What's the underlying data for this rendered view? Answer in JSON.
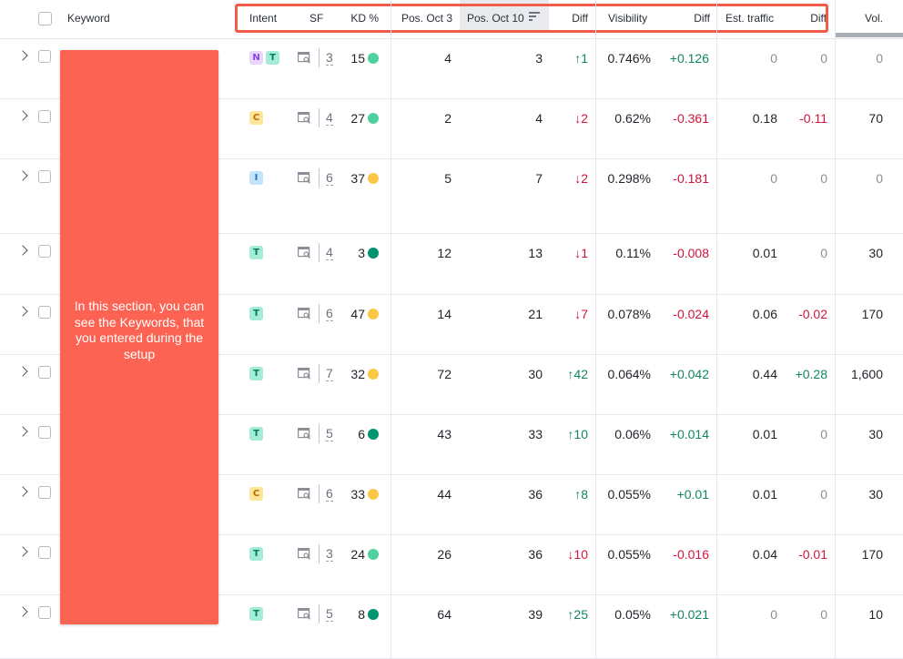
{
  "header": {
    "keyword": "Keyword",
    "intent": "Intent",
    "sf": "SF",
    "kd": "KD %",
    "pos_oct3": "Pos. Oct 3",
    "pos_oct10": "Pos. Oct 10",
    "diff1": "Diff",
    "visibility": "Visibility",
    "diff2": "Diff",
    "est_traffic": "Est. traffic",
    "diff3": "Diff",
    "vol": "Vol."
  },
  "sort": {
    "column": "Pos. Oct 10",
    "icon": "sort-icon"
  },
  "callout": {
    "text": "In this section, you can see the Keywords, that you entered during the setup",
    "color": "#fd6352"
  },
  "highlight_color": "#f25c47",
  "colors": {
    "up": "#11875f",
    "down": "#d2143a",
    "kd_green": "#4fd19f",
    "kd_yellow": "#fcc747",
    "kd_darkgreen": "#00936f"
  },
  "rows": [
    {
      "intent": [
        "N",
        "T"
      ],
      "sf": "3",
      "kd": "15",
      "kd_color": "#4fd19f",
      "pos1": "4",
      "pos2": "3",
      "diff1": "↑1",
      "diff1_dir": "up",
      "vis": "0.746%",
      "diff2": "+0.126",
      "diff2_dir": "up",
      "traffic": "0",
      "diff3": "0",
      "diff3_dir": "muted",
      "vol": "0"
    },
    {
      "intent": [
        "C"
      ],
      "sf": "4",
      "kd": "27",
      "kd_color": "#4fd19f",
      "pos1": "2",
      "pos2": "4",
      "diff1": "↓2",
      "diff1_dir": "down",
      "vis": "0.62%",
      "diff2": "-0.361",
      "diff2_dir": "down",
      "traffic": "0.18",
      "diff3": "-0.11",
      "diff3_dir": "down",
      "vol": "70"
    },
    {
      "intent": [
        "I"
      ],
      "sf": "6",
      "kd": "37",
      "kd_color": "#fcc747",
      "pos1": "5",
      "pos2": "7",
      "diff1": "↓2",
      "diff1_dir": "down",
      "vis": "0.298%",
      "diff2": "-0.181",
      "diff2_dir": "down",
      "traffic": "0",
      "diff3": "0",
      "diff3_dir": "muted",
      "vol": "0"
    },
    {
      "intent": [
        "T"
      ],
      "sf": "4",
      "kd": "3",
      "kd_color": "#00936f",
      "pos1": "12",
      "pos2": "13",
      "diff1": "↓1",
      "diff1_dir": "down",
      "vis": "0.11%",
      "diff2": "-0.008",
      "diff2_dir": "down",
      "traffic": "0.01",
      "diff3": "0",
      "diff3_dir": "muted",
      "vol": "30"
    },
    {
      "intent": [
        "T"
      ],
      "sf": "6",
      "kd": "47",
      "kd_color": "#fcc747",
      "pos1": "14",
      "pos2": "21",
      "diff1": "↓7",
      "diff1_dir": "down",
      "vis": "0.078%",
      "diff2": "-0.024",
      "diff2_dir": "down",
      "traffic": "0.06",
      "diff3": "-0.02",
      "diff3_dir": "down",
      "vol": "170"
    },
    {
      "intent": [
        "T"
      ],
      "sf": "7",
      "kd": "32",
      "kd_color": "#fcc747",
      "pos1": "72",
      "pos2": "30",
      "diff1": "↑42",
      "diff1_dir": "up",
      "vis": "0.064%",
      "diff2": "+0.042",
      "diff2_dir": "up",
      "traffic": "0.44",
      "diff3": "+0.28",
      "diff3_dir": "up",
      "vol": "1,600"
    },
    {
      "intent": [
        "T"
      ],
      "sf": "5",
      "kd": "6",
      "kd_color": "#00936f",
      "pos1": "43",
      "pos2": "33",
      "diff1": "↑10",
      "diff1_dir": "up",
      "vis": "0.06%",
      "diff2": "+0.014",
      "diff2_dir": "up",
      "traffic": "0.01",
      "diff3": "0",
      "diff3_dir": "muted",
      "vol": "30"
    },
    {
      "intent": [
        "C"
      ],
      "sf": "6",
      "kd": "33",
      "kd_color": "#fcc747",
      "pos1": "44",
      "pos2": "36",
      "diff1": "↑8",
      "diff1_dir": "up",
      "vis": "0.055%",
      "diff2": "+0.01",
      "diff2_dir": "up",
      "traffic": "0.01",
      "diff3": "0",
      "diff3_dir": "muted",
      "vol": "30"
    },
    {
      "intent": [
        "T"
      ],
      "sf": "3",
      "kd": "24",
      "kd_color": "#4fd19f",
      "pos1": "26",
      "pos2": "36",
      "diff1": "↓10",
      "diff1_dir": "down",
      "vis": "0.055%",
      "diff2": "-0.016",
      "diff2_dir": "down",
      "traffic": "0.04",
      "diff3": "-0.01",
      "diff3_dir": "down",
      "vol": "170"
    },
    {
      "intent": [
        "T"
      ],
      "sf": "5",
      "kd": "8",
      "kd_color": "#00936f",
      "pos1": "64",
      "pos2": "39",
      "diff1": "↑25",
      "diff1_dir": "up",
      "vis": "0.05%",
      "diff2": "+0.021",
      "diff2_dir": "up",
      "traffic": "0",
      "diff3": "0",
      "diff3_dir": "muted",
      "vol": "10"
    }
  ]
}
